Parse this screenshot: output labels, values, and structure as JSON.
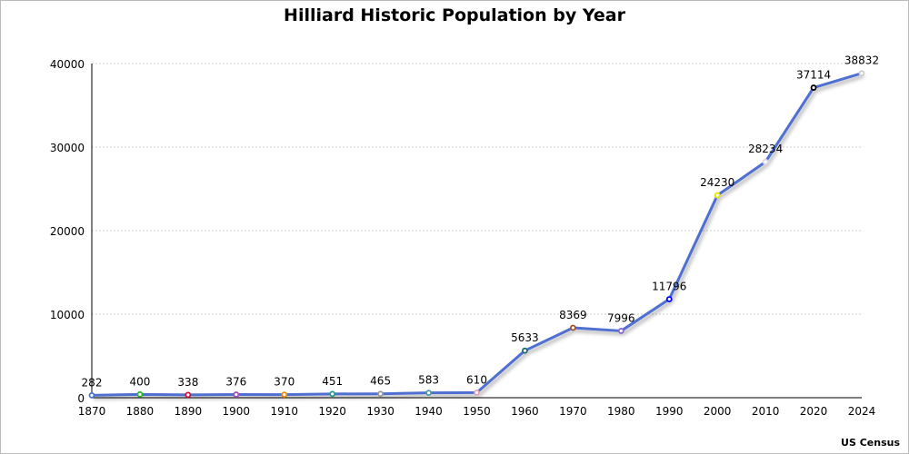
{
  "chart_data": {
    "type": "line",
    "title": "Hilliard Historic Population by Year",
    "source": "US Census",
    "xlabel": "",
    "ylabel": "",
    "ylim": [
      0,
      40000
    ],
    "yticks": [
      0,
      10000,
      20000,
      30000,
      40000
    ],
    "grid": true,
    "line_color": "#4f6fd0",
    "categories": [
      "1870",
      "1880",
      "1890",
      "1900",
      "1910",
      "1920",
      "1930",
      "1940",
      "1950",
      "1960",
      "1970",
      "1980",
      "1990",
      "2000",
      "2010",
      "2020",
      "2024"
    ],
    "values": [
      282,
      400,
      338,
      376,
      370,
      451,
      465,
      583,
      610,
      5633,
      8369,
      7996,
      11796,
      24230,
      28234,
      37114,
      38832
    ],
    "marker_colors": [
      "#4472c4",
      "#2fb82f",
      "#d0103a",
      "#a64dc9",
      "#f08a00",
      "#1a9f8f",
      "#999999",
      "#4a9ab0",
      "#e6a3b8",
      "#1f6f6a",
      "#a0522d",
      "#8a6ad8",
      "#0000ff",
      "#e6e600",
      "#d8d8e8",
      "#000000",
      "#cccccc"
    ]
  }
}
